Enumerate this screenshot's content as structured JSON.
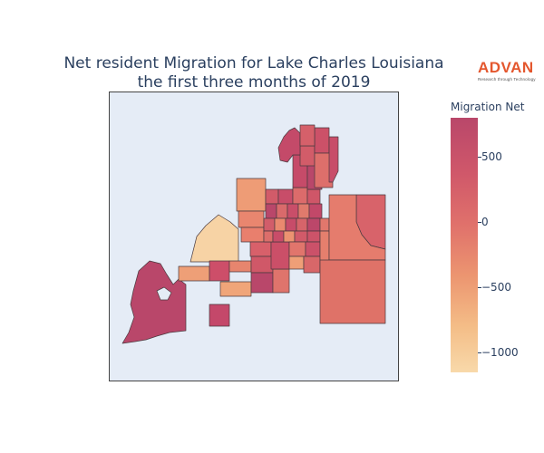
{
  "title": {
    "line1": "Net resident Migration for Lake Charles Louisiana",
    "line2": "the first three months of 2019"
  },
  "logo": {
    "word": "ADVAN",
    "tagline": "Research through Technology",
    "color": "#e4572e"
  },
  "colorbar": {
    "title": "Migration Net",
    "ticks": [
      "500",
      "0",
      "−500",
      "−1000"
    ],
    "tick_values": [
      500,
      0,
      -500,
      -1000
    ],
    "range": [
      -1150,
      800
    ],
    "colors": [
      "#f8d9aa",
      "#f4bd87",
      "#ec9570",
      "#e0716b",
      "#d0586a",
      "#b9476a"
    ]
  },
  "map_background": "#e5ecf6"
}
